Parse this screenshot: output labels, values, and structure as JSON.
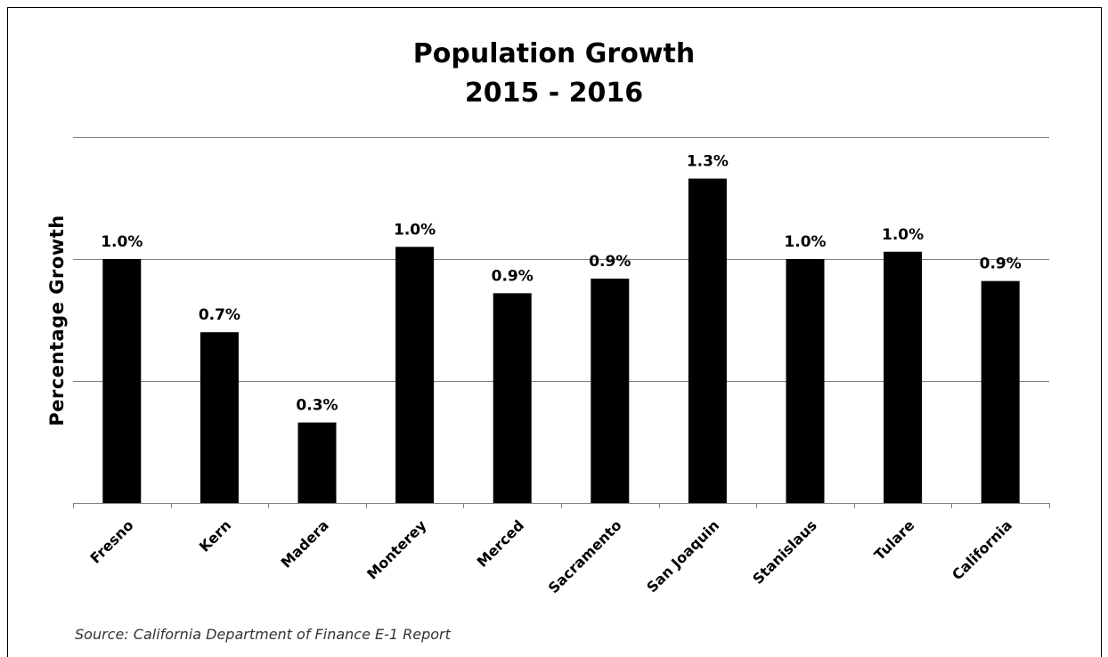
{
  "chart_data": {
    "type": "bar",
    "title": "Population Growth",
    "subtitle": "2015 - 2016",
    "ylabel": "Percentage Growth",
    "xlabel": "",
    "categories": [
      "Fresno",
      "Kern",
      "Madera",
      "Monterey",
      "Merced",
      "Sacramento",
      "San Joaquin",
      "Stanislaus",
      "Tulare",
      "California"
    ],
    "values": [
      1.0,
      0.7,
      0.33,
      1.05,
      0.86,
      0.92,
      1.33,
      1.0,
      1.03,
      0.91
    ],
    "value_labels": [
      "1.0%",
      "0.7%",
      "0.3%",
      "1.0%",
      "0.9%",
      "0.9%",
      "1.3%",
      "1.0%",
      "1.0%",
      "0.9%"
    ],
    "ylim": [
      0,
      1.5
    ],
    "gridlines": [
      0.5,
      1.0,
      1.5
    ],
    "grid": true,
    "bar_color": "#000000",
    "grid_color": "#808080"
  },
  "source": "Source: California Department of Finance E-1 Report"
}
